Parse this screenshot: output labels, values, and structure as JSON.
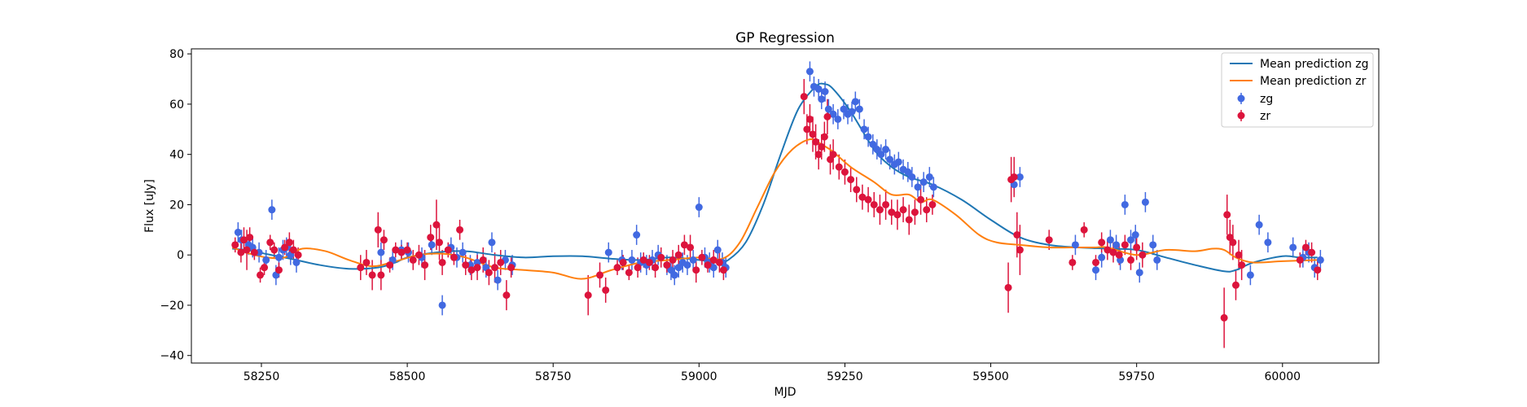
{
  "chart_data": {
    "type": "scatter",
    "title": "GP Regression",
    "xlabel": "MJD",
    "ylabel": "Flux [uJy]",
    "xlim": [
      58130,
      60165
    ],
    "ylim": [
      -43,
      82
    ],
    "xticks": [
      58250,
      58500,
      58750,
      59000,
      59250,
      59500,
      59750,
      60000
    ],
    "yticks": [
      -40,
      -20,
      0,
      20,
      40,
      60,
      80
    ],
    "grid": false,
    "legend_position": "top-right",
    "lines": [
      {
        "name": "Mean prediction zg",
        "color": "#1f77b4",
        "x": [
          58200,
          58230,
          58260,
          58300,
          58350,
          58400,
          58450,
          58480,
          58500,
          58550,
          58600,
          58650,
          58700,
          58750,
          58800,
          58850,
          58900,
          58950,
          59000,
          59030,
          59050,
          59080,
          59110,
          59140,
          59170,
          59200,
          59215,
          59230,
          59260,
          59300,
          59330,
          59360,
          59400,
          59450,
          59500,
          59550,
          59600,
          59650,
          59700,
          59750,
          59800,
          59850,
          59900,
          59920,
          59950,
          60000,
          60030,
          60060
        ],
        "y": [
          2.5,
          1.8,
          0.3,
          -1.5,
          -4,
          -5.5,
          -5,
          -3,
          -1,
          1,
          1.5,
          0,
          -1,
          -0.5,
          -0.5,
          -1.5,
          -2,
          -1,
          -2,
          -3,
          -2,
          5,
          20,
          40,
          58,
          67,
          68,
          66,
          57,
          42,
          35,
          31,
          28,
          22,
          14,
          7,
          4,
          3,
          2.5,
          2,
          -1,
          -4,
          -6.5,
          -6,
          -3,
          -0.5,
          -1,
          -1
        ]
      },
      {
        "name": "Mean prediction zr",
        "color": "#ff7f0e",
        "x": [
          58200,
          58230,
          58260,
          58290,
          58320,
          58360,
          58400,
          58440,
          58480,
          58520,
          58560,
          58600,
          58650,
          58700,
          58750,
          58800,
          58850,
          58900,
          58950,
          59000,
          59040,
          59070,
          59100,
          59130,
          59160,
          59190,
          59210,
          59230,
          59260,
          59300,
          59330,
          59360,
          59380,
          59400,
          59440,
          59480,
          59510,
          59550,
          59600,
          59650,
          59680,
          59700,
          59750,
          59800,
          59850,
          59880,
          59900,
          59920,
          59950,
          60000,
          60060
        ],
        "y": [
          3,
          0.5,
          -1,
          -1,
          2.5,
          1.5,
          -2,
          -4.5,
          -2.5,
          0,
          0.5,
          -1,
          -5,
          -6,
          -7,
          -9.5,
          -6,
          -3,
          -2,
          -1,
          -1.5,
          5,
          19,
          33,
          42,
          46,
          44,
          41,
          35,
          29,
          24,
          24,
          21,
          22,
          16,
          8,
          5,
          4,
          3,
          3,
          3,
          3,
          0,
          2,
          1.5,
          2.5,
          2,
          -1,
          -3,
          -2.5,
          -2
        ]
      }
    ],
    "series": [
      {
        "name": "zg",
        "color": "#4169e1",
        "x": [
          58210,
          58216,
          58228,
          58235,
          58246,
          58258,
          58268,
          58275,
          58280,
          58287,
          58293,
          58300,
          58310,
          58455,
          58475,
          58490,
          58502,
          58525,
          58542,
          58560,
          58575,
          58585,
          58595,
          58608,
          58620,
          58635,
          58645,
          58655,
          58668,
          58680,
          58845,
          58868,
          58885,
          58893,
          58900,
          58910,
          58920,
          58930,
          58945,
          58952,
          58958,
          58965,
          58972,
          58980,
          58990,
          59000,
          59010,
          59018,
          59025,
          59032,
          59040,
          59046,
          59190,
          59197,
          59205,
          59210,
          59216,
          59222,
          59230,
          59238,
          59248,
          59255,
          59262,
          59268,
          59275,
          59283,
          59290,
          59298,
          59305,
          59312,
          59320,
          59327,
          59335,
          59342,
          59350,
          59358,
          59365,
          59375,
          59385,
          59395,
          59402,
          59540,
          59550,
          59645,
          59680,
          59690,
          59705,
          59715,
          59722,
          59730,
          59740,
          59748,
          59755,
          59765,
          59778,
          59785,
          59945,
          59960,
          59975,
          60018,
          60035,
          60045,
          60055,
          60065
        ],
        "y": [
          9,
          6,
          4,
          3,
          1,
          -2,
          18,
          -8,
          -1,
          2,
          3,
          0,
          -3,
          1,
          -2,
          2,
          1,
          -1,
          4,
          -20,
          3,
          -1,
          1,
          -4,
          -3,
          -5,
          5,
          -10,
          -2,
          -4,
          1,
          -2,
          -2,
          8,
          -3,
          -4,
          -2,
          0,
          -4,
          -6,
          -8,
          -5,
          -3,
          -4,
          -2,
          19,
          -1,
          -3,
          -5,
          2,
          -3,
          -5,
          73,
          67,
          66,
          62,
          65,
          58,
          56,
          54,
          58,
          56,
          57,
          61,
          58,
          50,
          47,
          44,
          42,
          40,
          42,
          38,
          36,
          37,
          34,
          33,
          31,
          27,
          29,
          31,
          27,
          28,
          31,
          4,
          -6,
          -1,
          6,
          4,
          -2,
          20,
          6,
          8,
          -7,
          21,
          4,
          -2,
          -8,
          12,
          5,
          3,
          -1,
          1,
          -5,
          -2
        ]
      },
      {
        "name": "zr",
        "color": "#dc143c",
        "x": [
          58205,
          58215,
          58220,
          58225,
          58230,
          58238,
          58248,
          58255,
          58265,
          58272,
          58280,
          58290,
          58298,
          58305,
          58313,
          58420,
          58430,
          58440,
          58450,
          58455,
          58460,
          58470,
          58480,
          58490,
          58500,
          58510,
          58520,
          58530,
          58540,
          58550,
          58555,
          58560,
          58570,
          58580,
          58590,
          58600,
          58610,
          58620,
          58630,
          58640,
          58650,
          58660,
          58670,
          58678,
          58810,
          58830,
          58840,
          58860,
          58870,
          58880,
          58895,
          58905,
          58915,
          58925,
          58935,
          58945,
          58955,
          58965,
          58975,
          58985,
          58995,
          59005,
          59015,
          59025,
          59035,
          59042,
          59180,
          59185,
          59190,
          59195,
          59200,
          59205,
          59210,
          59215,
          59220,
          59225,
          59230,
          59240,
          59250,
          59260,
          59270,
          59280,
          59290,
          59300,
          59310,
          59320,
          59330,
          59340,
          59350,
          59360,
          59370,
          59380,
          59390,
          59400,
          59530,
          59535,
          59540,
          59545,
          59550,
          59600,
          59640,
          59660,
          59680,
          59690,
          59700,
          59710,
          59720,
          59730,
          59740,
          59750,
          59760,
          59900,
          59905,
          59910,
          59915,
          59920,
          59925,
          59930,
          60030,
          60040,
          60050,
          60060
        ],
        "y": [
          4,
          1,
          6,
          2,
          7,
          1,
          -8,
          -5,
          5,
          2,
          -6,
          3,
          5,
          2,
          0,
          -5,
          -3,
          -8,
          10,
          -8,
          6,
          -4,
          2,
          1,
          2,
          -2,
          0,
          -4,
          7,
          12,
          5,
          -3,
          2,
          -1,
          10,
          -4,
          -6,
          -5,
          -2,
          -7,
          -5,
          -3,
          -16,
          -5,
          -16,
          -8,
          -14,
          -5,
          -3,
          -7,
          -5,
          -2,
          -3,
          -5,
          -1,
          -4,
          -2,
          0,
          4,
          3,
          -6,
          -1,
          -4,
          -2,
          -3,
          -6,
          63,
          50,
          54,
          48,
          45,
          40,
          43,
          47,
          55,
          38,
          40,
          35,
          33,
          30,
          26,
          23,
          22,
          20,
          18,
          20,
          17,
          16,
          18,
          14,
          17,
          22,
          18,
          20,
          -13,
          30,
          31,
          8,
          2,
          6,
          -3,
          10,
          -3,
          5,
          2,
          1,
          0,
          4,
          -2,
          3,
          0,
          -25,
          16,
          7,
          5,
          -12,
          0,
          -4,
          -2,
          3,
          1,
          -6
        ],
        "err": [
          3,
          4,
          5,
          8,
          4,
          3,
          3,
          3,
          3,
          3,
          3,
          3,
          4,
          4,
          3,
          5,
          5,
          6,
          7,
          6,
          4,
          3,
          3,
          3,
          3,
          4,
          4,
          6,
          5,
          10,
          7,
          5,
          3,
          3,
          4,
          4,
          4,
          5,
          5,
          5,
          6,
          5,
          6,
          4,
          8,
          5,
          5,
          3,
          3,
          3,
          4,
          3,
          3,
          4,
          4,
          3,
          4,
          4,
          4,
          5,
          5,
          3,
          3,
          4,
          4,
          4,
          7,
          6,
          6,
          7,
          7,
          6,
          5,
          6,
          7,
          6,
          6,
          5,
          5,
          5,
          5,
          5,
          5,
          5,
          6,
          6,
          5,
          6,
          5,
          6,
          5,
          6,
          5,
          4,
          10,
          9,
          8,
          9,
          10,
          4,
          3,
          3,
          3,
          4,
          4,
          4,
          4,
          4,
          4,
          5,
          5,
          12,
          8,
          7,
          7,
          6,
          6,
          6,
          3,
          3,
          4,
          4
        ]
      }
    ]
  }
}
